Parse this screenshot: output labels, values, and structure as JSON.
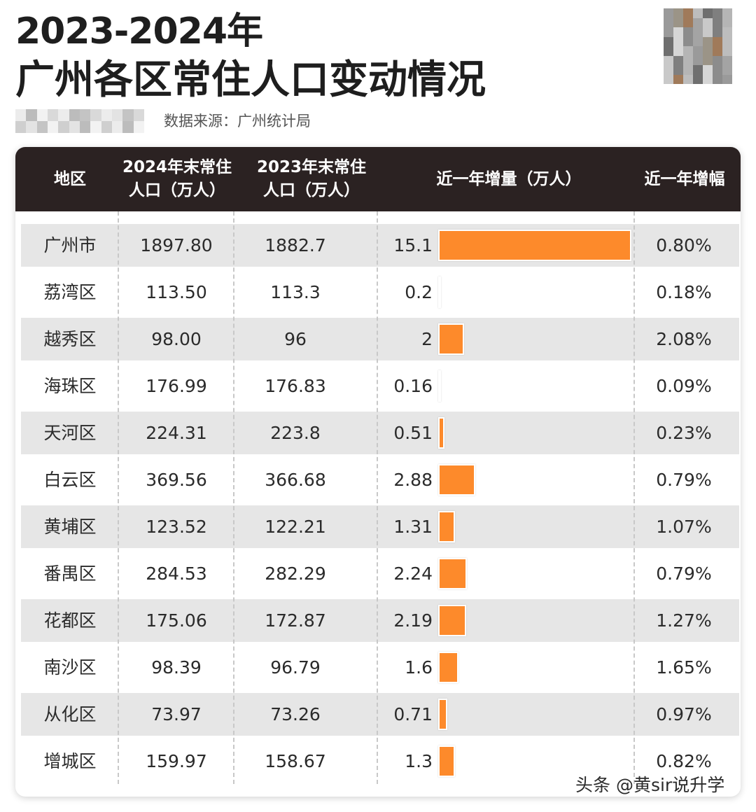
{
  "title_line1": "2023-2024年",
  "title_line2": "广州各区常住人口变动情况",
  "source": "数据来源：广州统计局",
  "watermark": "头条 @黄sir说升学",
  "header": {
    "region": "地区",
    "pop2024_l1": "2024年末常住",
    "pop2024_l2": "人口（万人）",
    "pop2023_l1": "2023年末常住",
    "pop2023_l2": "人口（万人）",
    "increase": "近一年增量（万人）",
    "rate": "近一年增幅"
  },
  "colors": {
    "header_bg": "#2b2222",
    "bar": "#fd8a2b",
    "row_shade": "#e6e6e6"
  },
  "chart_data": {
    "type": "table",
    "columns": [
      "地区",
      "2024年末常住人口（万人）",
      "2023年末常住人口（万人）",
      "近一年增量（万人）",
      "近一年增幅"
    ],
    "bar_column": "近一年增量（万人）",
    "rows": [
      {
        "region": "广州市",
        "pop2024": "1897.80",
        "pop2023": "1882.7",
        "increase": "15.1",
        "increase_value": 15.1,
        "rate": "0.80%"
      },
      {
        "region": "荔湾区",
        "pop2024": "113.50",
        "pop2023": "113.3",
        "increase": "0.2",
        "increase_value": 0.2,
        "rate": "0.18%"
      },
      {
        "region": "越秀区",
        "pop2024": "98.00",
        "pop2023": "96",
        "increase": "2",
        "increase_value": 2,
        "rate": "2.08%"
      },
      {
        "region": "海珠区",
        "pop2024": "176.99",
        "pop2023": "176.83",
        "increase": "0.16",
        "increase_value": 0.16,
        "rate": "0.09%"
      },
      {
        "region": "天河区",
        "pop2024": "224.31",
        "pop2023": "223.8",
        "increase": "0.51",
        "increase_value": 0.51,
        "rate": "0.23%"
      },
      {
        "region": "白云区",
        "pop2024": "369.56",
        "pop2023": "366.68",
        "increase": "2.88",
        "increase_value": 2.88,
        "rate": "0.79%"
      },
      {
        "region": "黄埔区",
        "pop2024": "123.52",
        "pop2023": "122.21",
        "increase": "1.31",
        "increase_value": 1.31,
        "rate": "1.07%"
      },
      {
        "region": "番禺区",
        "pop2024": "284.53",
        "pop2023": "282.29",
        "increase": "2.24",
        "increase_value": 2.24,
        "rate": "0.79%"
      },
      {
        "region": "花都区",
        "pop2024": "175.06",
        "pop2023": "172.87",
        "increase": "2.19",
        "increase_value": 2.19,
        "rate": "1.27%"
      },
      {
        "region": "南沙区",
        "pop2024": "98.39",
        "pop2023": "96.79",
        "increase": "1.6",
        "increase_value": 1.6,
        "rate": "1.65%"
      },
      {
        "region": "从化区",
        "pop2024": "73.97",
        "pop2023": "73.26",
        "increase": "0.71",
        "increase_value": 0.71,
        "rate": "0.97%"
      },
      {
        "region": "增城区",
        "pop2024": "159.97",
        "pop2023": "158.67",
        "increase": "1.3",
        "increase_value": 1.3,
        "rate": "0.82%"
      }
    ]
  }
}
